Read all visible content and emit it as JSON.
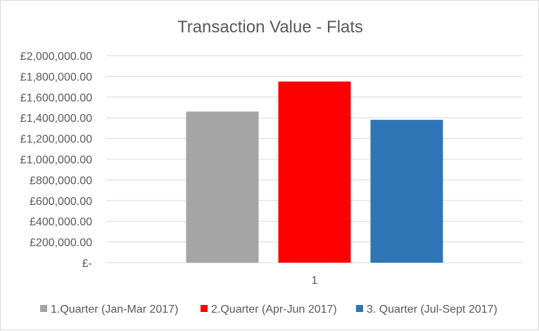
{
  "chart_data": {
    "type": "bar",
    "title": "Transaction Value - Flats",
    "xlabel": "",
    "ylabel": "",
    "categories": [
      "1"
    ],
    "series": [
      {
        "name": "1.Quarter (Jan-Mar 2017)",
        "values": [
          1460000
        ],
        "color": "#a5a5a5"
      },
      {
        "name": "2.Quarter (Apr-Jun 2017)",
        "values": [
          1750000
        ],
        "color": "#ff0000"
      },
      {
        "name": "3. Quarter (Jul-Sept 2017)",
        "values": [
          1380000
        ],
        "color": "#2e75b6"
      }
    ],
    "ylim": [
      0,
      2000000
    ],
    "yticks": [
      0,
      200000,
      400000,
      600000,
      800000,
      1000000,
      1200000,
      1400000,
      1600000,
      1800000,
      2000000
    ],
    "ytick_labels": [
      "£-",
      "£200,000.00",
      "£400,000.00",
      "£600,000.00",
      "£800,000.00",
      "£1,000,000.00",
      "£1,200,000.00",
      "£1,400,000.00",
      "£1,600,000.00",
      "£1,800,000.00",
      "£2,000,000.00"
    ],
    "grid": true,
    "legend_position": "bottom",
    "gridline_color": "#d9d9d9",
    "text_color": "#595959"
  }
}
